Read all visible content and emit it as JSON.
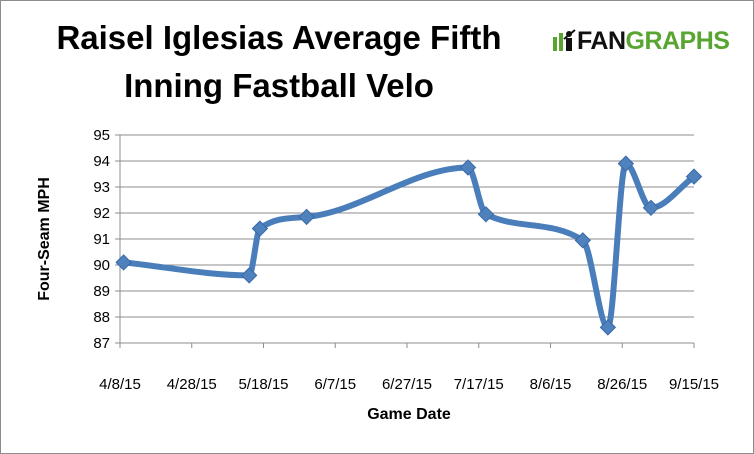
{
  "logo": {
    "text_left": "FAN",
    "text_right": "GRAPHS"
  },
  "chart_data": {
    "type": "line",
    "title_lines": [
      "Raisel Iglesias Average Fifth",
      "Inning Fastball Velo"
    ],
    "xlabel": "Game Date",
    "ylabel": "Four-Seam MPH",
    "ylim": [
      87,
      95
    ],
    "yticks": [
      87,
      88,
      89,
      90,
      91,
      92,
      93,
      94,
      95
    ],
    "xlim": [
      "2015-04-08",
      "2015-09-15"
    ],
    "xtick_labels": [
      "4/8/15",
      "4/28/15",
      "5/18/15",
      "6/7/15",
      "6/27/15",
      "7/17/15",
      "8/6/15",
      "8/26/15",
      "9/15/15"
    ],
    "grid": true,
    "legend": "none",
    "line_color": "#4a7ebb",
    "marker_color": "#4f81bd",
    "series": [
      {
        "x": [
          "2015-04-09",
          "2015-05-14",
          "2015-05-17",
          "2015-05-30",
          "2015-07-14",
          "2015-07-19",
          "2015-08-15",
          "2015-08-22",
          "2015-08-27",
          "2015-09-03",
          "2015-09-15"
        ],
        "values": [
          90.1,
          89.6,
          91.4,
          91.85,
          93.75,
          91.95,
          90.95,
          87.6,
          93.9,
          92.2,
          93.4
        ]
      }
    ]
  }
}
